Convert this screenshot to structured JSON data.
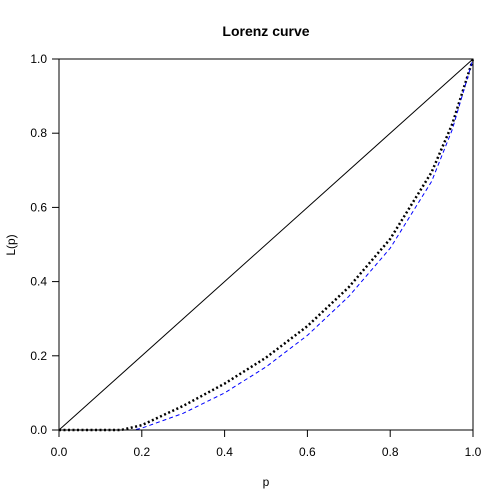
{
  "chart_data": {
    "type": "line",
    "title": "Lorenz curve",
    "xlabel": "p",
    "ylabel": "L(p)",
    "xlim": [
      0,
      1
    ],
    "ylim": [
      0,
      1
    ],
    "x_ticks": [
      "0.0",
      "0.2",
      "0.4",
      "0.6",
      "0.8",
      "1.0"
    ],
    "y_ticks": [
      "0.0",
      "0.2",
      "0.4",
      "0.6",
      "0.8",
      "1.0"
    ],
    "grid": false,
    "legend": "none",
    "series": [
      {
        "style": "solid",
        "color": "#000000",
        "x": [
          0,
          1
        ],
        "y": [
          0,
          1
        ]
      },
      {
        "style": "dotted",
        "color": "#000000",
        "x": [
          0.0,
          0.1,
          0.15,
          0.2,
          0.3,
          0.4,
          0.5,
          0.6,
          0.7,
          0.8,
          0.9,
          0.95,
          1.0
        ],
        "y": [
          0.0,
          0.0,
          0.0,
          0.013,
          0.065,
          0.125,
          0.195,
          0.28,
          0.385,
          0.515,
          0.695,
          0.825,
          1.0
        ]
      },
      {
        "style": "dashed",
        "color": "#0000ff",
        "x": [
          0.0,
          0.1,
          0.15,
          0.18,
          0.2,
          0.3,
          0.4,
          0.5,
          0.6,
          0.7,
          0.8,
          0.9,
          0.95,
          1.0
        ],
        "y": [
          0.0,
          0.0,
          0.0,
          0.0,
          0.005,
          0.045,
          0.1,
          0.17,
          0.255,
          0.36,
          0.49,
          0.67,
          0.81,
          1.0
        ]
      }
    ]
  }
}
